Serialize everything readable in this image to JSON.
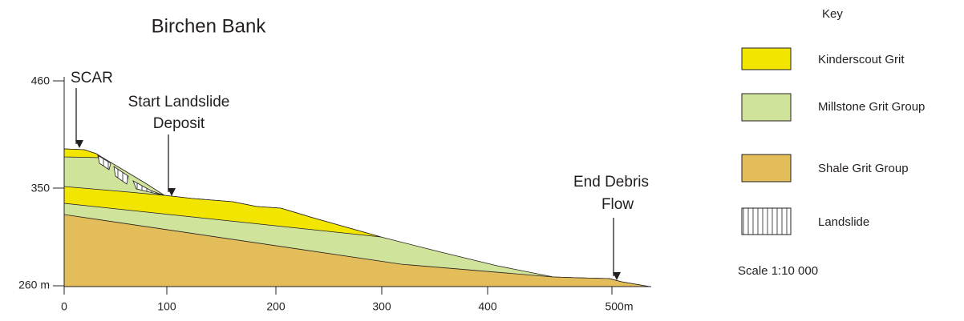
{
  "title": "Birchen Bank",
  "y_axis_labels": [
    "460",
    "350",
    "260 m"
  ],
  "x_axis_labels": [
    "0",
    "100",
    "200",
    "300",
    "400",
    "500m"
  ],
  "annotations": {
    "scar": "SCAR",
    "start_landslide": [
      "Start Landslide",
      "Deposit"
    ],
    "end_debris": [
      "End Debris",
      "Flow"
    ]
  },
  "key": {
    "title": "Key",
    "items": [
      "Kinderscout Grit",
      "Millstone Grit Group",
      "Shale Grit Group",
      "Landslide"
    ],
    "scale": "Scale 1:10 000"
  }
}
